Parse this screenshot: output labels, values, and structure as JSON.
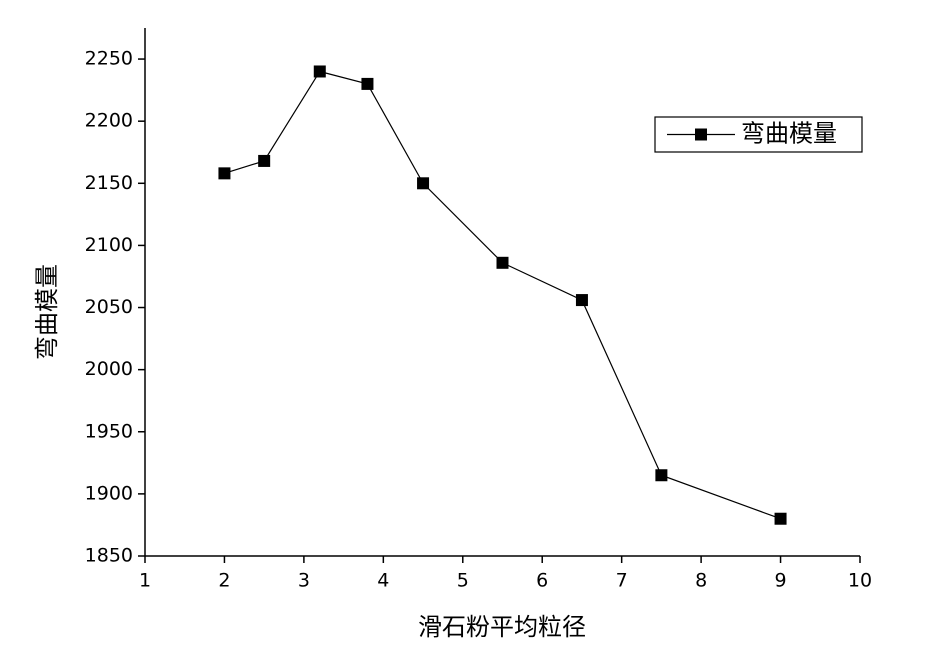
{
  "chart_data": {
    "type": "line",
    "x_label": "滑石粉平均粒径",
    "y_label": "弯曲模量",
    "x": [
      2,
      2.5,
      3.2,
      3.8,
      4.5,
      5.5,
      6.5,
      7.5,
      9
    ],
    "series": [
      {
        "name": "弯曲模量",
        "color": "#000000",
        "values": [
          2158,
          2168,
          2240,
          2230,
          2150,
          2086,
          2056,
          1915,
          1880
        ]
      }
    ],
    "xlim": [
      1,
      10
    ],
    "xticks": [
      1,
      2,
      3,
      4,
      5,
      6,
      7,
      8,
      9,
      10
    ],
    "ylim": [
      1850,
      2275
    ],
    "yticks": [
      1850,
      1900,
      1950,
      2000,
      2050,
      2100,
      2150,
      2200,
      2250
    ],
    "legend": "upper-right",
    "grid": false,
    "marker": "square"
  }
}
